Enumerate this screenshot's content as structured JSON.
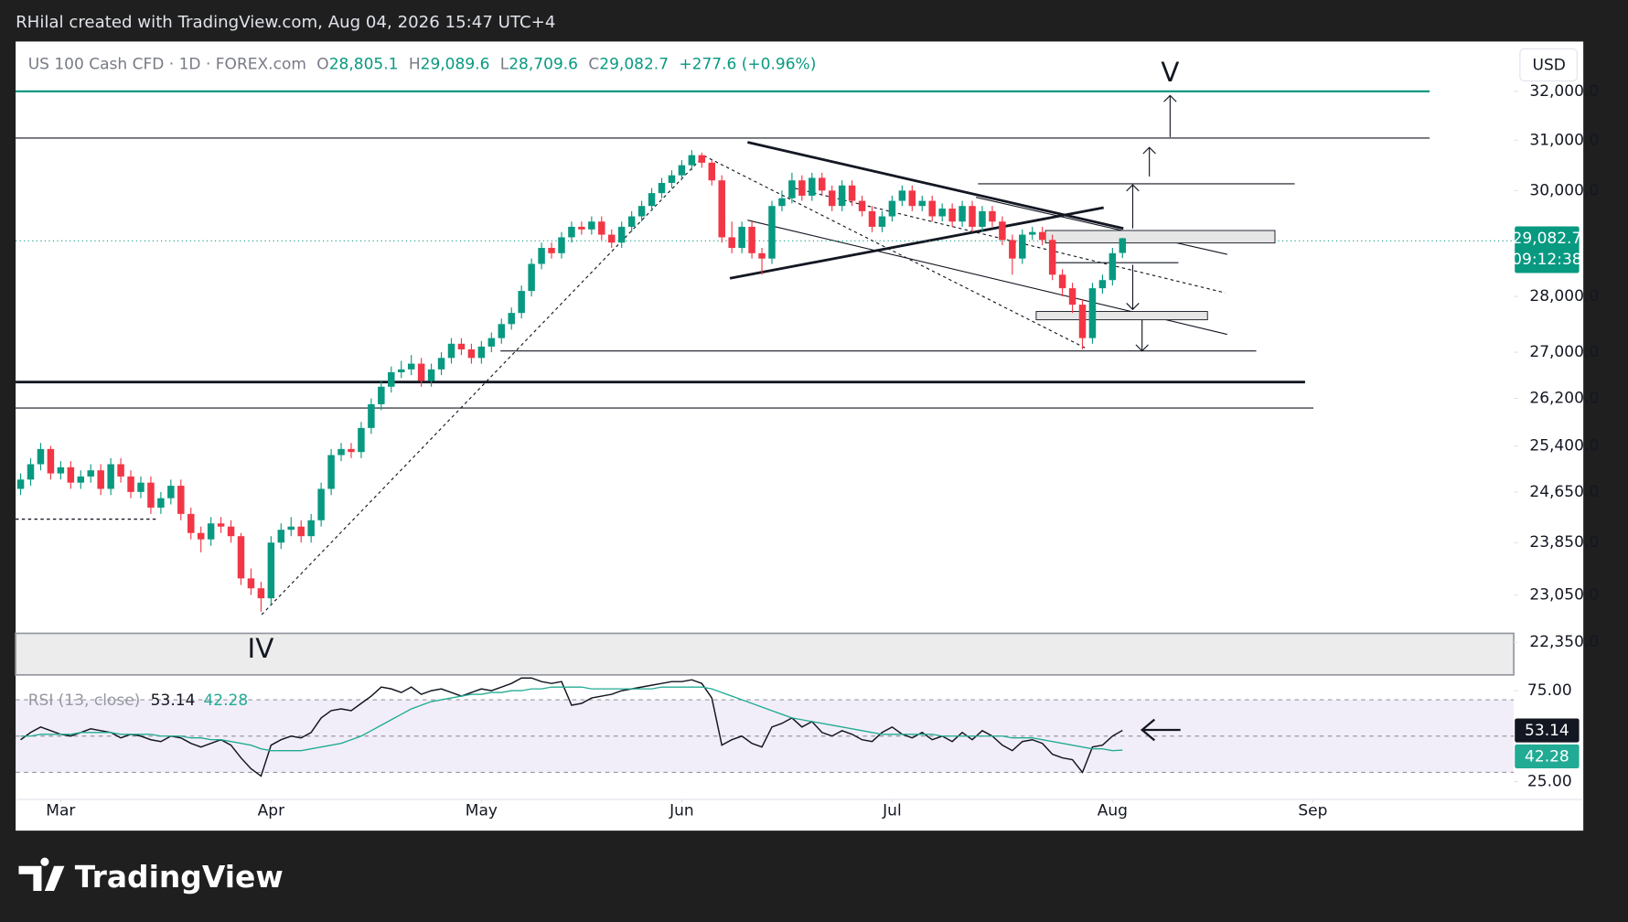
{
  "header": "RHilal created with TradingView.com, Aug 04, 2026 15:47 UTC+4",
  "footer_logo": "TradingView",
  "chart_data": {
    "type": "candlestick",
    "legend": {
      "symbol": "US 100 Cash CFD · 1D · FOREX.com",
      "open_label": "O",
      "open": "28,805.1",
      "high_label": "H",
      "high": "29,089.6",
      "low_label": "L",
      "low": "28,709.6",
      "close_label": "C",
      "close": "29,082.7",
      "change": "+277.6 (+0.96%)"
    },
    "currency": "USD",
    "up_color": "#089981",
    "down_color": "#f23645",
    "log_scale": true,
    "ylim": [
      21880,
      33060
    ],
    "yticks": [
      {
        "value": 32000,
        "label": "32,000.0"
      },
      {
        "value": 31000,
        "label": "31,000.0"
      },
      {
        "value": 30000,
        "label": "30,000.0"
      },
      {
        "value": 28000,
        "label": "28,000.0"
      },
      {
        "value": 27000,
        "label": "27,000.0"
      },
      {
        "value": 26200,
        "label": "26,200.0"
      },
      {
        "value": 25400,
        "label": "25,400.0"
      },
      {
        "value": 24650,
        "label": "24,650.0"
      },
      {
        "value": 23850,
        "label": "23,850.0"
      },
      {
        "value": 23050,
        "label": "23,050.0"
      },
      {
        "value": 22350,
        "label": "22,350.0"
      }
    ],
    "xlim": [
      -0.5,
      156
    ],
    "xticks": [
      {
        "value": 4,
        "label": "Mar"
      },
      {
        "value": 25,
        "label": "Apr"
      },
      {
        "value": 46,
        "label": "May"
      },
      {
        "value": 66,
        "label": "Jun"
      },
      {
        "value": 87,
        "label": "Jul"
      },
      {
        "value": 109,
        "label": "Aug"
      },
      {
        "value": 129,
        "label": "Sep"
      }
    ],
    "last_price_label": "29,082.7",
    "countdown": "09:12:38",
    "annotations": [
      "V",
      "IV"
    ],
    "ohlc": [
      [
        24700,
        24950,
        24600,
        24850
      ],
      [
        24850,
        25200,
        24750,
        25100
      ],
      [
        25100,
        25450,
        25000,
        25350
      ],
      [
        25350,
        25400,
        24850,
        24950
      ],
      [
        24950,
        25150,
        24850,
        25050
      ],
      [
        25050,
        25150,
        24700,
        24800
      ],
      [
        24800,
        25000,
        24700,
        24900
      ],
      [
        24900,
        25100,
        24800,
        25000
      ],
      [
        25000,
        25100,
        24600,
        24700
      ],
      [
        24700,
        25200,
        24600,
        25100
      ],
      [
        25100,
        25200,
        24800,
        24900
      ],
      [
        24900,
        25000,
        24550,
        24650
      ],
      [
        24650,
        24900,
        24550,
        24800
      ],
      [
        24800,
        24900,
        24300,
        24400
      ],
      [
        24400,
        24650,
        24300,
        24550
      ],
      [
        24550,
        24850,
        24450,
        24750
      ],
      [
        24750,
        24850,
        24200,
        24300
      ],
      [
        24300,
        24400,
        23900,
        24000
      ],
      [
        24000,
        24100,
        23700,
        23900
      ],
      [
        23900,
        24250,
        23800,
        24150
      ],
      [
        24150,
        24250,
        24000,
        24100
      ],
      [
        24100,
        24200,
        23850,
        23950
      ],
      [
        23950,
        24000,
        23200,
        23300
      ],
      [
        23300,
        23450,
        23050,
        23150
      ],
      [
        23150,
        23250,
        22800,
        23000
      ],
      [
        23000,
        23950,
        22900,
        23850
      ],
      [
        23850,
        24150,
        23750,
        24050
      ],
      [
        24050,
        24250,
        23950,
        24100
      ],
      [
        24100,
        24200,
        23850,
        23950
      ],
      [
        23950,
        24300,
        23850,
        24200
      ],
      [
        24200,
        24800,
        24100,
        24700
      ],
      [
        24700,
        25350,
        24600,
        25250
      ],
      [
        25250,
        25450,
        25150,
        25350
      ],
      [
        25350,
        25450,
        25200,
        25300
      ],
      [
        25300,
        25800,
        25200,
        25700
      ],
      [
        25700,
        26200,
        25600,
        26100
      ],
      [
        26100,
        26500,
        26000,
        26400
      ],
      [
        26400,
        26750,
        26300,
        26650
      ],
      [
        26650,
        26850,
        26550,
        26700
      ],
      [
        26700,
        26950,
        26600,
        26800
      ],
      [
        26800,
        26900,
        26400,
        26500
      ],
      [
        26500,
        26800,
        26400,
        26700
      ],
      [
        26700,
        27000,
        26600,
        26900
      ],
      [
        26900,
        27250,
        26800,
        27150
      ],
      [
        27150,
        27250,
        26950,
        27050
      ],
      [
        27050,
        27150,
        26800,
        26900
      ],
      [
        26900,
        27200,
        26800,
        27100
      ],
      [
        27100,
        27350,
        27000,
        27250
      ],
      [
        27250,
        27600,
        27150,
        27500
      ],
      [
        27500,
        27800,
        27400,
        27700
      ],
      [
        27700,
        28200,
        27600,
        28100
      ],
      [
        28100,
        28700,
        28000,
        28600
      ],
      [
        28600,
        29000,
        28500,
        28900
      ],
      [
        28900,
        29000,
        28700,
        28800
      ],
      [
        28800,
        29200,
        28700,
        29100
      ],
      [
        29100,
        29400,
        29000,
        29300
      ],
      [
        29300,
        29400,
        29150,
        29250
      ],
      [
        29250,
        29500,
        29150,
        29400
      ],
      [
        29400,
        29500,
        29050,
        29150
      ],
      [
        29150,
        29250,
        28900,
        29000
      ],
      [
        29000,
        29400,
        28900,
        29300
      ],
      [
        29300,
        29600,
        29200,
        29500
      ],
      [
        29500,
        29800,
        29400,
        29700
      ],
      [
        29700,
        30050,
        29600,
        29950
      ],
      [
        29950,
        30250,
        29850,
        30150
      ],
      [
        30150,
        30400,
        30050,
        30300
      ],
      [
        30300,
        30600,
        30200,
        30500
      ],
      [
        30500,
        30800,
        30400,
        30700
      ],
      [
        30700,
        30750,
        30450,
        30550
      ],
      [
        30550,
        30600,
        30100,
        30200
      ],
      [
        30200,
        30300,
        29000,
        29100
      ],
      [
        29100,
        29400,
        28800,
        28900
      ],
      [
        28900,
        29400,
        28800,
        29300
      ],
      [
        29300,
        29400,
        28700,
        28800
      ],
      [
        28800,
        28900,
        28400,
        28700
      ],
      [
        28700,
        29800,
        28600,
        29700
      ],
      [
        29700,
        30000,
        29600,
        29850
      ],
      [
        29850,
        30350,
        29750,
        30200
      ],
      [
        30200,
        30300,
        29800,
        29900
      ],
      [
        29900,
        30350,
        29800,
        30250
      ],
      [
        30250,
        30350,
        29900,
        30000
      ],
      [
        30000,
        30100,
        29600,
        29700
      ],
      [
        29700,
        30200,
        29600,
        30100
      ],
      [
        30100,
        30200,
        29700,
        29800
      ],
      [
        29800,
        29900,
        29500,
        29600
      ],
      [
        29600,
        29700,
        29200,
        29300
      ],
      [
        29300,
        29600,
        29200,
        29500
      ],
      [
        29500,
        29900,
        29400,
        29800
      ],
      [
        29800,
        30100,
        29700,
        30000
      ],
      [
        30000,
        30100,
        29600,
        29700
      ],
      [
        29700,
        29900,
        29600,
        29800
      ],
      [
        29800,
        29900,
        29400,
        29500
      ],
      [
        29500,
        29750,
        29400,
        29650
      ],
      [
        29650,
        29750,
        29300,
        29400
      ],
      [
        29400,
        29800,
        29300,
        29700
      ],
      [
        29700,
        29800,
        29200,
        29300
      ],
      [
        29300,
        29700,
        29200,
        29600
      ],
      [
        29600,
        29700,
        29300,
        29400
      ],
      [
        29400,
        29500,
        28950,
        29050
      ],
      [
        29050,
        29150,
        28400,
        28700
      ],
      [
        28700,
        29250,
        28600,
        29150
      ],
      [
        29150,
        29300,
        29050,
        29200
      ],
      [
        29200,
        29300,
        28950,
        29050
      ],
      [
        29050,
        29150,
        28300,
        28400
      ],
      [
        28400,
        28500,
        28000,
        28150
      ],
      [
        28150,
        28250,
        27700,
        27850
      ],
      [
        27850,
        27950,
        27050,
        27250
      ],
      [
        27250,
        28250,
        27150,
        28150
      ],
      [
        28150,
        28400,
        28050,
        28300
      ],
      [
        28300,
        28900,
        28200,
        28800
      ],
      [
        28805.1,
        29089.6,
        28709.6,
        29082.7
      ]
    ],
    "rsi": {
      "title": "RSI (13, close)",
      "ylim": [
        15.1,
        83.7
      ],
      "yticks": [
        {
          "value": 75,
          "label": "75.00"
        },
        {
          "value": 25,
          "label": "25.00"
        }
      ],
      "bands": [
        70,
        50,
        30
      ],
      "band_color": "#7e57c2",
      "series": [
        {
          "color": "#131722",
          "values": [
            48,
            52,
            55,
            53,
            51,
            50,
            52,
            54,
            53,
            52,
            49,
            51,
            50,
            48,
            47,
            50,
            49,
            46,
            44,
            46,
            48,
            45,
            38,
            32,
            28,
            45,
            48,
            50,
            49,
            52,
            60,
            64,
            65,
            64,
            68,
            72,
            77,
            76,
            74,
            77,
            73,
            75,
            76,
            74,
            72,
            74,
            76,
            75,
            77,
            79,
            82,
            82,
            80,
            79,
            80,
            67,
            68,
            71,
            72,
            73,
            75,
            76,
            77,
            78,
            79,
            80,
            80,
            81,
            79,
            71,
            45,
            48,
            50,
            46,
            44,
            55,
            57,
            60,
            55,
            58,
            52,
            50,
            53,
            51,
            48,
            47,
            52,
            55,
            51,
            49,
            52,
            48,
            50,
            47,
            52,
            48,
            53,
            50,
            45,
            42,
            47,
            48,
            46,
            40,
            38,
            37,
            30,
            44,
            45,
            50,
            53.14
          ]
        },
        {
          "color": "#22ab94",
          "values": [
            50,
            50,
            51,
            51,
            51,
            51,
            52,
            52,
            52,
            52,
            51,
            51,
            51,
            51,
            50,
            50,
            50,
            49,
            49,
            48,
            48,
            47,
            46,
            45,
            43,
            42,
            42,
            42,
            42,
            43,
            44,
            45,
            46,
            48,
            50,
            53,
            56,
            59,
            62,
            65,
            67,
            69,
            70,
            71,
            72,
            73,
            73,
            74,
            74,
            75,
            75,
            76,
            76,
            77,
            77,
            77,
            77,
            76,
            76,
            76,
            76,
            76,
            76,
            76,
            77,
            77,
            77,
            77,
            77,
            76,
            74,
            72,
            70,
            68,
            66,
            64,
            62,
            60,
            59,
            58,
            57,
            56,
            55,
            54,
            53,
            52,
            51,
            51,
            51,
            51,
            51,
            51,
            50,
            50,
            50,
            50,
            50,
            50,
            50,
            49,
            49,
            49,
            48,
            47,
            46,
            45,
            44,
            43,
            43,
            42,
            42.28
          ]
        }
      ]
    }
  }
}
